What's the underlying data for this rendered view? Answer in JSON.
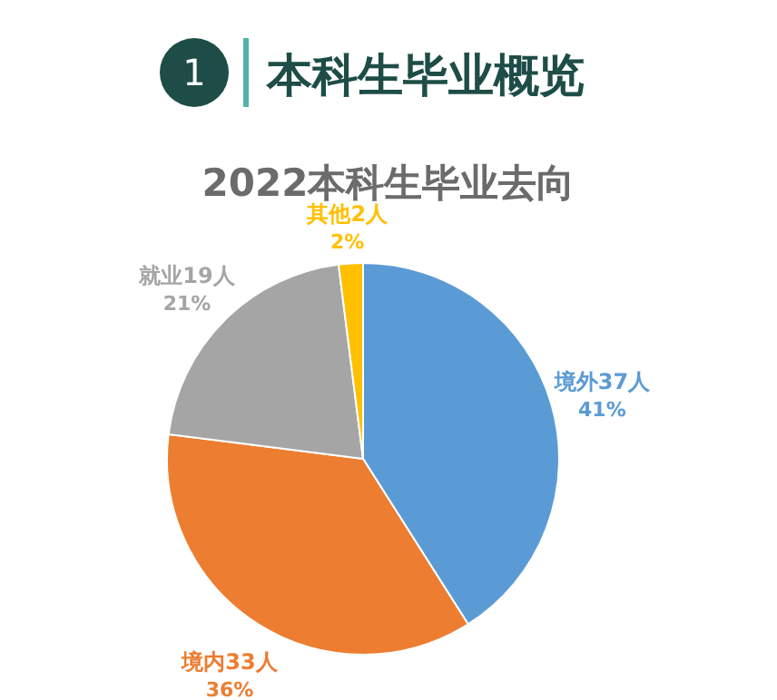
{
  "chart_data": {
    "type": "pie",
    "title": "本科生毕业概览",
    "subtitle": "2022本科生毕业去向",
    "annotations": [
      "1"
    ],
    "categories": [
      "境外37人",
      "境内33人",
      "就业19人",
      "其他2人"
    ],
    "values": [
      41,
      36,
      21,
      2
    ],
    "colors": [
      "#5b9bd5",
      "#ed7d31",
      "#a5a5a5",
      "#ffc000"
    ],
    "value_labels": [
      "41%",
      "36%",
      "21%",
      "2%"
    ]
  }
}
